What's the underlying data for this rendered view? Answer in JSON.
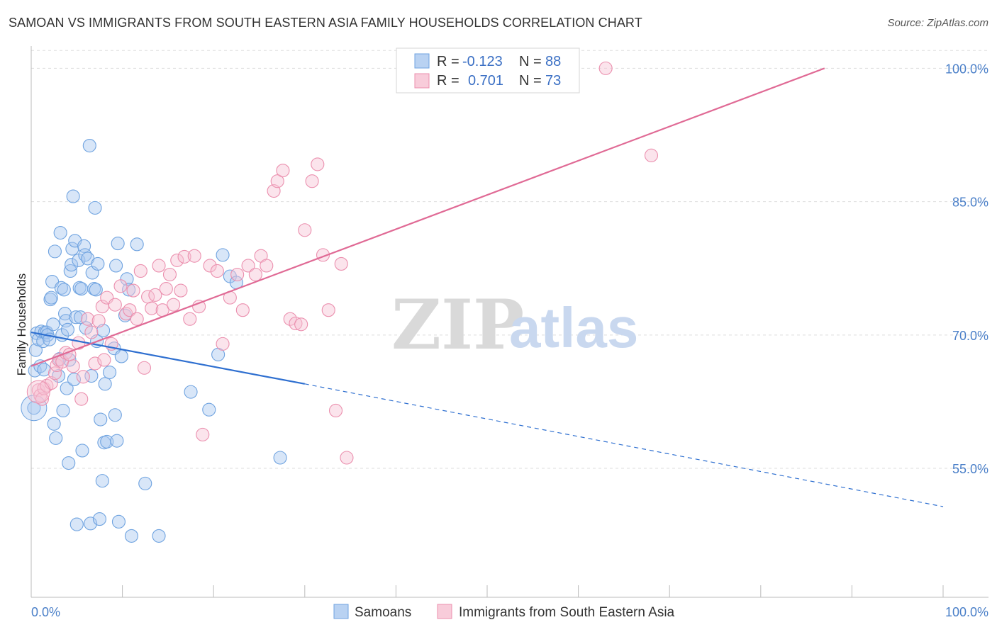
{
  "title": "SAMOAN VS IMMIGRANTS FROM SOUTH EASTERN ASIA FAMILY HOUSEHOLDS CORRELATION CHART",
  "source": "Source: ZipAtlas.com",
  "colors": {
    "blue": "#6fa3e0",
    "blue_fill": "#a9c8ef",
    "blue_line": "#2e6fd0",
    "pink": "#eb8fae",
    "pink_fill": "#f6c3d4",
    "pink_line": "#e06a95",
    "tick_text": "#4a7fc8",
    "grid": "#dddddd"
  },
  "watermark": {
    "zip": "ZIP",
    "atlas": "atlas"
  },
  "legend": {
    "rows": [
      {
        "r_label": "R =",
        "r_value": "-0.123",
        "n_label": "N =",
        "n_value": "88"
      },
      {
        "r_label": "R =",
        "r_value": "0.701",
        "n_label": "N =",
        "n_value": "73"
      }
    ]
  },
  "bottom_legend": {
    "series1": "Samoans",
    "series2": "Immigrants from South Eastern Asia"
  },
  "chart_data": {
    "type": "scatter",
    "title": "SAMOAN VS IMMIGRANTS FROM SOUTH EASTERN ASIA FAMILY HOUSEHOLDS CORRELATION CHART",
    "xlabel": "",
    "ylabel": "Family Households",
    "xlim": [
      0,
      100
    ],
    "ylim": [
      40.5,
      102.5
    ],
    "x_tick_labels": [
      "0.0%",
      "100.0%"
    ],
    "y_ticks": [
      55,
      70,
      85,
      100
    ],
    "y_tick_labels": [
      "55.0%",
      "70.0%",
      "85.0%",
      "100.0%"
    ],
    "grid": true,
    "series": [
      {
        "name": "Samoans",
        "color": "blue",
        "r": -0.123,
        "n": 88,
        "trend": {
          "x0": 0,
          "y0": 70.3,
          "x1": 30,
          "y1": 64.5,
          "dash_to_x": 100,
          "dash_to_y": 50.7
        },
        "points": [
          [
            0.3,
            61.8
          ],
          [
            0.4,
            66
          ],
          [
            0.5,
            68.3
          ],
          [
            0.6,
            70.2
          ],
          [
            0.8,
            69.5
          ],
          [
            1,
            66.5
          ],
          [
            1.1,
            70.4
          ],
          [
            1.3,
            69.3
          ],
          [
            1.4,
            66.1
          ],
          [
            1.5,
            70.3
          ],
          [
            1.7,
            70.3
          ],
          [
            1.8,
            70
          ],
          [
            2,
            69.5
          ],
          [
            2.1,
            74
          ],
          [
            2.2,
            74.2
          ],
          [
            2.3,
            76
          ],
          [
            2.4,
            71.2
          ],
          [
            2.5,
            60
          ],
          [
            2.6,
            79.4
          ],
          [
            2.7,
            58.4
          ],
          [
            3,
            65.4
          ],
          [
            3.1,
            67.3
          ],
          [
            3.2,
            81.5
          ],
          [
            3.3,
            75.3
          ],
          [
            3.4,
            70
          ],
          [
            3.5,
            61.5
          ],
          [
            3.6,
            75.1
          ],
          [
            3.7,
            72.4
          ],
          [
            3.8,
            71.6
          ],
          [
            3.9,
            64
          ],
          [
            4,
            70.6
          ],
          [
            4.1,
            55.6
          ],
          [
            4.2,
            67.2
          ],
          [
            4.3,
            77.2
          ],
          [
            4.4,
            77.9
          ],
          [
            4.5,
            79.7
          ],
          [
            4.6,
            85.6
          ],
          [
            4.7,
            65
          ],
          [
            4.8,
            80.6
          ],
          [
            4.9,
            72
          ],
          [
            5,
            48.7
          ],
          [
            5.2,
            78.4
          ],
          [
            5.3,
            75.3
          ],
          [
            5.4,
            72
          ],
          [
            5.5,
            75.2
          ],
          [
            5.6,
            57
          ],
          [
            5.8,
            80
          ],
          [
            5.9,
            79
          ],
          [
            6,
            70.8
          ],
          [
            6.2,
            78.6
          ],
          [
            6.4,
            91.3
          ],
          [
            6.5,
            48.8
          ],
          [
            6.6,
            65.4
          ],
          [
            6.7,
            77
          ],
          [
            6.9,
            75.2
          ],
          [
            7,
            84.3
          ],
          [
            7.1,
            75.1
          ],
          [
            7.2,
            69.3
          ],
          [
            7.3,
            78
          ],
          [
            7.5,
            49.3
          ],
          [
            7.6,
            60.5
          ],
          [
            7.8,
            53.6
          ],
          [
            7.9,
            70.5
          ],
          [
            8,
            57.9
          ],
          [
            8.1,
            64.5
          ],
          [
            8.3,
            58
          ],
          [
            8.6,
            65.8
          ],
          [
            9.1,
            68.5
          ],
          [
            9.2,
            61
          ],
          [
            9.3,
            77.8
          ],
          [
            9.4,
            58.1
          ],
          [
            9.5,
            80.3
          ],
          [
            9.6,
            49
          ],
          [
            9.9,
            67.6
          ],
          [
            10.3,
            72.2
          ],
          [
            10.5,
            76.3
          ],
          [
            10.7,
            75.1
          ],
          [
            11,
            47.4
          ],
          [
            11.6,
            80.2
          ],
          [
            12.5,
            53.3
          ],
          [
            14,
            47.4
          ],
          [
            17.5,
            63.6
          ],
          [
            19.5,
            61.6
          ],
          [
            20.5,
            67.8
          ],
          [
            21,
            79
          ],
          [
            21.8,
            76.6
          ],
          [
            22.5,
            75.9
          ],
          [
            27.3,
            56.2
          ]
        ]
      },
      {
        "name": "Immigrants from South Eastern Asia",
        "color": "pink",
        "r": 0.701,
        "n": 73,
        "trend": {
          "x0": 0,
          "y0": 66.5,
          "x1": 87,
          "y1": 100
        },
        "points": [
          [
            0.8,
            63.8
          ],
          [
            1,
            63.2
          ],
          [
            1.2,
            62.8
          ],
          [
            1.4,
            64
          ],
          [
            1.7,
            64.3
          ],
          [
            2.2,
            64.6
          ],
          [
            2.6,
            65.7
          ],
          [
            2.8,
            66.6
          ],
          [
            3,
            67.2
          ],
          [
            3.4,
            67
          ],
          [
            3.8,
            68
          ],
          [
            4.2,
            67.8
          ],
          [
            4.6,
            66.5
          ],
          [
            5.2,
            69.1
          ],
          [
            5.5,
            62.8
          ],
          [
            5.7,
            65.3
          ],
          [
            6.2,
            71.8
          ],
          [
            6.6,
            70.3
          ],
          [
            7,
            66.8
          ],
          [
            7.4,
            71.6
          ],
          [
            7.8,
            73.2
          ],
          [
            8,
            67.2
          ],
          [
            8.3,
            74.2
          ],
          [
            8.8,
            69
          ],
          [
            9.2,
            73.4
          ],
          [
            9.8,
            75.5
          ],
          [
            10.4,
            72.4
          ],
          [
            10.8,
            72.8
          ],
          [
            11.2,
            75
          ],
          [
            11.6,
            71.8
          ],
          [
            12,
            77.2
          ],
          [
            12.4,
            66.3
          ],
          [
            12.8,
            74.3
          ],
          [
            13.2,
            73
          ],
          [
            13.6,
            74.5
          ],
          [
            14,
            77.8
          ],
          [
            14.4,
            72.8
          ],
          [
            14.8,
            75.2
          ],
          [
            15.2,
            76.8
          ],
          [
            15.6,
            73.4
          ],
          [
            16,
            78.4
          ],
          [
            16.4,
            75
          ],
          [
            16.8,
            78.8
          ],
          [
            17.4,
            71.8
          ],
          [
            17.9,
            78.9
          ],
          [
            18.4,
            73.2
          ],
          [
            18.8,
            58.8
          ],
          [
            19.6,
            77.8
          ],
          [
            20.4,
            77.2
          ],
          [
            21,
            69
          ],
          [
            21.8,
            74.2
          ],
          [
            22.6,
            76.8
          ],
          [
            23.2,
            72.8
          ],
          [
            23.8,
            77.8
          ],
          [
            24.6,
            76.8
          ],
          [
            25.2,
            78.9
          ],
          [
            25.8,
            77.8
          ],
          [
            26.6,
            86.2
          ],
          [
            27,
            87.3
          ],
          [
            27.6,
            88.5
          ],
          [
            28.4,
            71.8
          ],
          [
            29,
            71.3
          ],
          [
            29.6,
            71.2
          ],
          [
            30,
            81.8
          ],
          [
            30.8,
            87.3
          ],
          [
            31.4,
            89.2
          ],
          [
            32,
            79
          ],
          [
            32.6,
            72.8
          ],
          [
            33.4,
            61.5
          ],
          [
            34,
            78
          ],
          [
            34.6,
            56.2
          ],
          [
            63,
            100
          ],
          [
            68,
            90.2
          ]
        ]
      }
    ]
  }
}
